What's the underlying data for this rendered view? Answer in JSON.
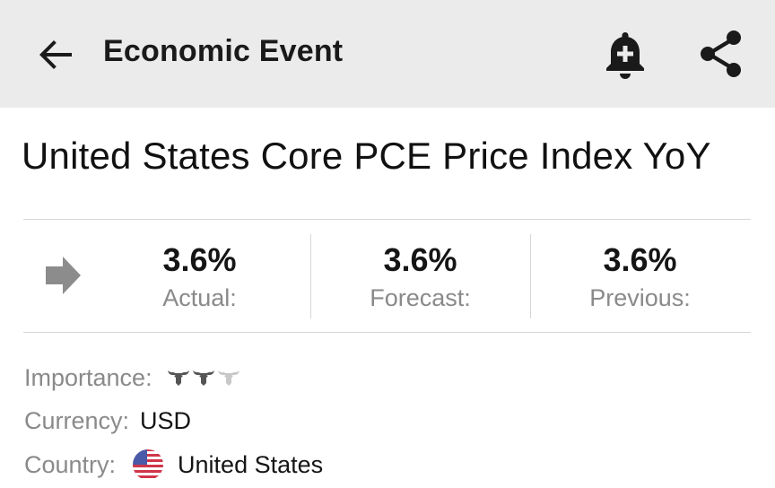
{
  "header": {
    "title": "Economic Event",
    "back_icon": "arrow-left-icon",
    "alert_icon": "bell-plus-icon",
    "share_icon": "share-icon"
  },
  "event": {
    "title": "United States Core PCE Price Index YoY",
    "trend_icon": "arrow-right-icon"
  },
  "stats": [
    {
      "value": "3.6%",
      "label": "Actual:"
    },
    {
      "value": "3.6%",
      "label": "Forecast:"
    },
    {
      "value": "3.6%",
      "label": "Previous:"
    }
  ],
  "details": {
    "importance_label": "Importance:",
    "importance_level": 2,
    "importance_max": 3,
    "currency_label": "Currency:",
    "currency_value": "USD",
    "country_label": "Country:",
    "country_value": "United States",
    "country_flag_icon": "us-flag-icon"
  },
  "colors": {
    "appbar_bg": "#ebebeb",
    "muted_text": "#8a8a8a",
    "divider": "#d6d6d6",
    "bull_active": "#555555",
    "bull_inactive": "#c8c8c8"
  }
}
